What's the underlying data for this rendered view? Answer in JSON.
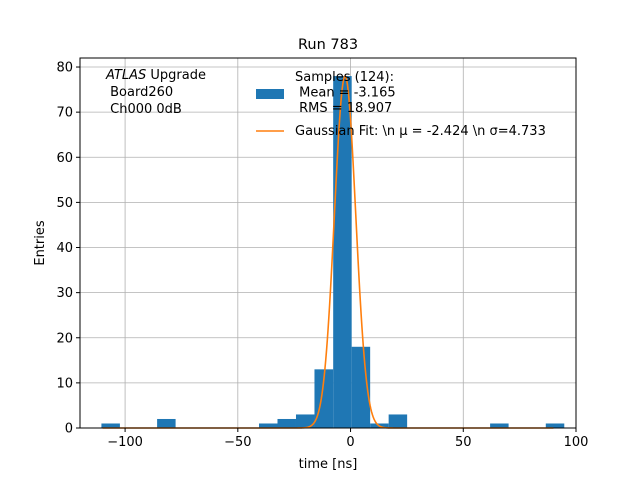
{
  "chart_data": {
    "type": "bar",
    "title": "Run 783",
    "xlabel": "time [ns]",
    "ylabel": "Entries",
    "xlim": [
      -120,
      100
    ],
    "ylim": [
      0,
      82
    ],
    "grid": true,
    "xticks": [
      -100,
      -50,
      0,
      50,
      100
    ],
    "xtick_labels": [
      "−100",
      "−50",
      "0",
      "50",
      "100"
    ],
    "yticks": [
      0,
      10,
      20,
      30,
      40,
      50,
      60,
      70,
      80
    ],
    "ytick_labels": [
      "0",
      "10",
      "20",
      "30",
      "40",
      "50",
      "60",
      "70",
      "80"
    ],
    "histogram": {
      "color": "#1f77b4",
      "bins": [
        {
          "x0": -110.5,
          "x1": -102.3,
          "count": 1
        },
        {
          "x0": -85.8,
          "x1": -77.6,
          "count": 2
        },
        {
          "x0": -40.6,
          "x1": -32.4,
          "count": 1
        },
        {
          "x0": -32.4,
          "x1": -24.2,
          "count": 2
        },
        {
          "x0": -24.2,
          "x1": -16.0,
          "count": 3
        },
        {
          "x0": -16.0,
          "x1": -7.7,
          "count": 13
        },
        {
          "x0": -7.7,
          "x1": 0.5,
          "count": 78
        },
        {
          "x0": 0.5,
          "x1": 8.7,
          "count": 18
        },
        {
          "x0": 8.7,
          "x1": 16.9,
          "count": 1
        },
        {
          "x0": 16.9,
          "x1": 25.1,
          "count": 3
        },
        {
          "x0": 61.9,
          "x1": 70.1,
          "count": 1
        },
        {
          "x0": 86.6,
          "x1": 94.8,
          "count": 1
        }
      ]
    },
    "fit": {
      "color": "#ff7f0e",
      "mu": -2.424,
      "sigma": 4.733,
      "amplitude": 78
    },
    "legend": {
      "position": "top-center",
      "entries": [
        {
          "label": "Samples (124):\n Mean = -3.165\n RMS = 18.907",
          "color": "#1f77b4",
          "kind": "patch"
        },
        {
          "label": "Gaussian Fit: \\n μ = -2.424 \\n σ=4.733",
          "color": "#ff7f0e",
          "kind": "line"
        }
      ]
    },
    "annotation": {
      "italic": "ATLAS",
      "rest": " Upgrade",
      "line2": " Board260",
      "line3": " Ch000 0dB"
    }
  }
}
